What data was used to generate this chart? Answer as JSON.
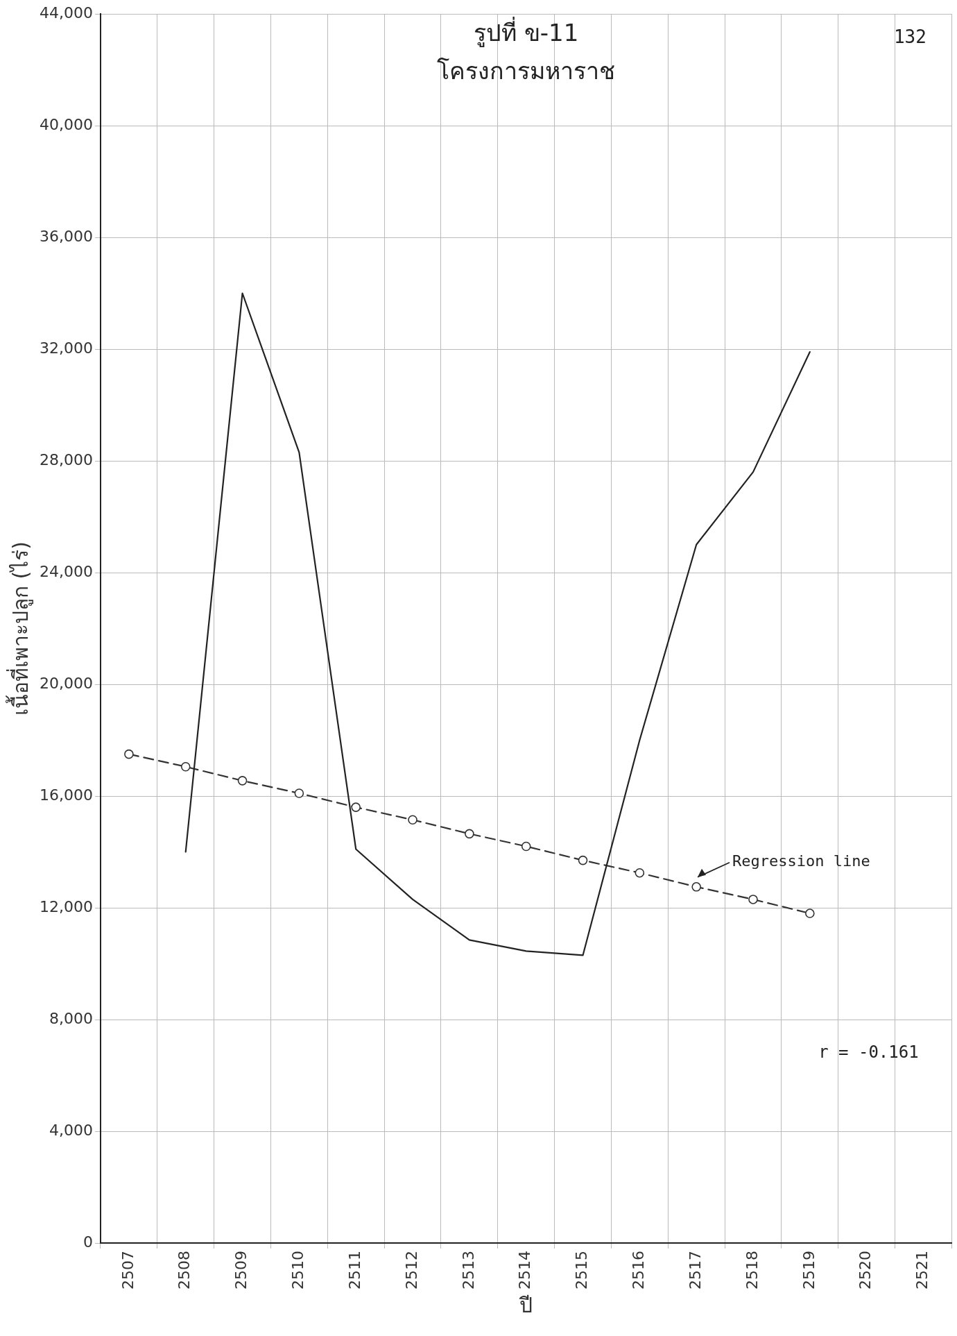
{
  "chart_data": {
    "type": "line",
    "title": "รูปที่ ข-11",
    "subtitle": "โครงการมหาราช",
    "xlabel": "ปี",
    "ylabel": "เนื้อที่เพาะปลูก (ไร่)",
    "categories": [
      "2507",
      "2508",
      "2509",
      "2510",
      "2511",
      "2512",
      "2513",
      "2514",
      "2515",
      "2516",
      "2517",
      "2518",
      "2519",
      "2520",
      "2521"
    ],
    "series": [
      {
        "color": "#222222",
        "marker": "none",
        "line_style": "solid",
        "values": [
          null,
          14000,
          34000,
          28300,
          14100,
          12300,
          10850,
          10450,
          10300,
          18000,
          25000,
          27600,
          31900,
          null,
          null
        ]
      },
      {
        "color": "#333333",
        "marker": "circle",
        "line_style": "dashed",
        "values": [
          17500,
          17050,
          16550,
          16100,
          15600,
          15150,
          14650,
          14200,
          13700,
          13250,
          12750,
          12300,
          11800,
          null,
          null
        ]
      }
    ],
    "ylim": [
      0,
      44000
    ],
    "yticks": [
      0,
      {
        "value": 4000,
        "label": "4,000"
      },
      {
        "value": 8000,
        "label": "8,000"
      },
      {
        "value": 12000,
        "label": "12,000"
      },
      {
        "value": 16000,
        "label": "16,000"
      },
      {
        "value": 20000,
        "label": "20,000"
      },
      {
        "value": 24000,
        "label": "24,000"
      },
      {
        "value": 28000,
        "label": "28,000"
      },
      {
        "value": 32000,
        "label": "32,000"
      },
      {
        "value": 36000,
        "label": "36,000"
      },
      {
        "value": 40000,
        "label": "40,000"
      },
      {
        "value": 44000,
        "label": "44,000"
      }
    ],
    "grid": true,
    "legend": false,
    "annotations": [
      "132",
      "Regression line",
      "r = -0.161"
    ]
  }
}
